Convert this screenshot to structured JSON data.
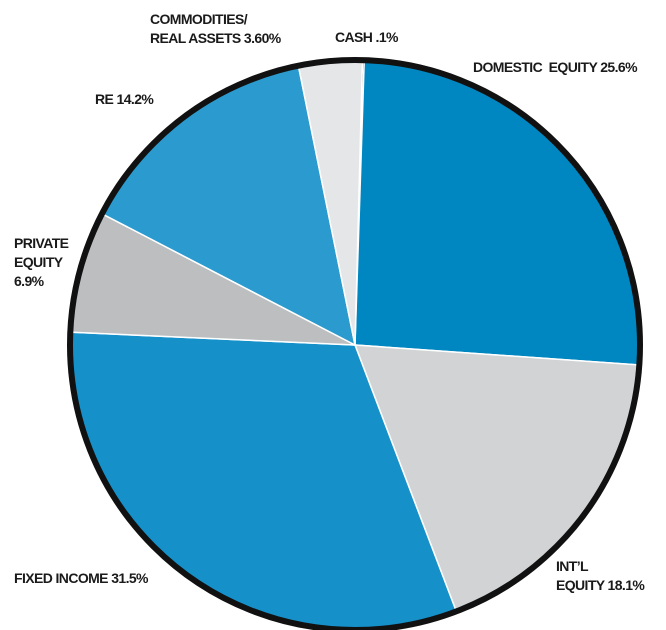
{
  "chart_data": {
    "type": "pie",
    "title": "",
    "slices": [
      {
        "lines": [
          "CASH .1%"
        ],
        "value": 0.1,
        "color": "#111111"
      },
      {
        "lines": [
          "DOMESTIC  EQUITY 25.6%"
        ],
        "value": 25.6,
        "color": "#0087c1"
      },
      {
        "lines": [
          "INT’L",
          "EQUITY 18.1%"
        ],
        "value": 18.1,
        "color": "#d1d3d4"
      },
      {
        "lines": [
          "FIXED INCOME 31.5%"
        ],
        "value": 31.5,
        "color": "#1590c9"
      },
      {
        "lines": [
          "PRIVATE",
          "EQUITY",
          "6.9%"
        ],
        "value": 6.9,
        "color": "#bcbec0"
      },
      {
        "lines": [
          "RE 14.2%"
        ],
        "value": 14.2,
        "color": "#2b9bcf"
      },
      {
        "lines": [
          "COMMODITIES/",
          "REAL ASSETS 3.60%"
        ],
        "value": 3.6,
        "color": "#e4e6e8"
      }
    ]
  }
}
